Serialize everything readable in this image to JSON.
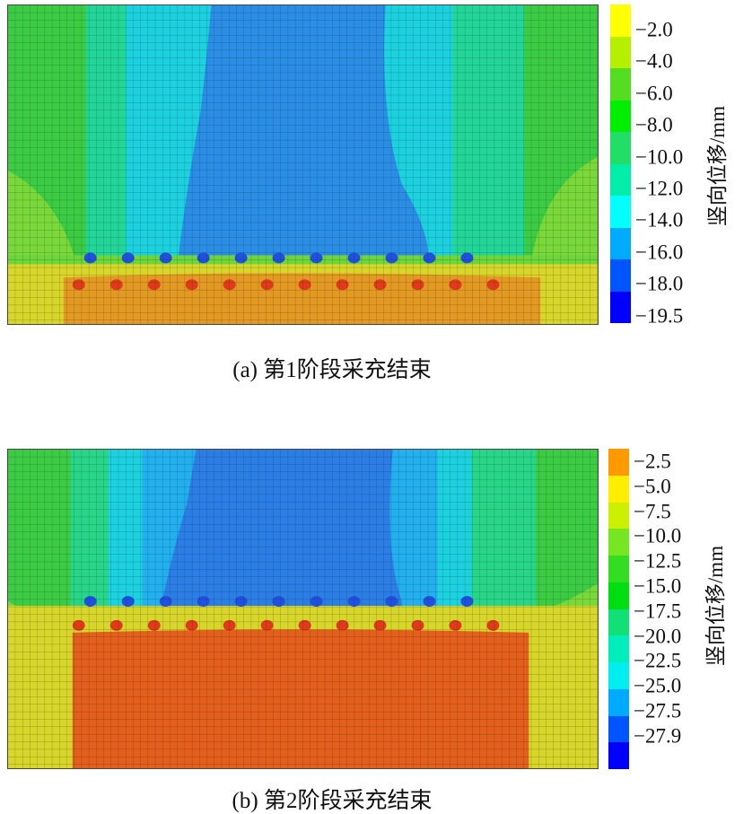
{
  "chart_data": [
    {
      "type": "heatmap",
      "title": "(a) 第1阶段采充结束",
      "colorbar_label": "竖向位移/mm",
      "colorbar_ticks": [
        "−2.0",
        "−4.0",
        "−6.0",
        "−8.0",
        "−10.0",
        "−12.0",
        "−14.0",
        "−16.0",
        "−18.0",
        "−19.5"
      ],
      "colorbar_colors": [
        "#ffff00",
        "#b4f000",
        "#55dd22",
        "#00ee00",
        "#22dd66",
        "#00eeaa",
        "#00ffff",
        "#00aaff",
        "#0055ff",
        "#0000ff"
      ],
      "range": [
        -19.5,
        0
      ]
    },
    {
      "type": "heatmap",
      "title": "(b) 第2阶段采充结束",
      "colorbar_label": "竖向位移/mm",
      "colorbar_ticks": [
        "−2.5",
        "−5.0",
        "−7.5",
        "−10.0",
        "−12.5",
        "−15.0",
        "−17.5",
        "−20.0",
        "−22.5",
        "−25.0",
        "−27.5",
        "−27.9"
      ],
      "colorbar_colors": [
        "#ff9900",
        "#ffee00",
        "#ccf000",
        "#77e622",
        "#33dd22",
        "#00dd11",
        "#11e077",
        "#00eebb",
        "#00eeee",
        "#00aaff",
        "#0055ff",
        "#0000ff"
      ],
      "range": [
        -27.9,
        0
      ]
    }
  ]
}
